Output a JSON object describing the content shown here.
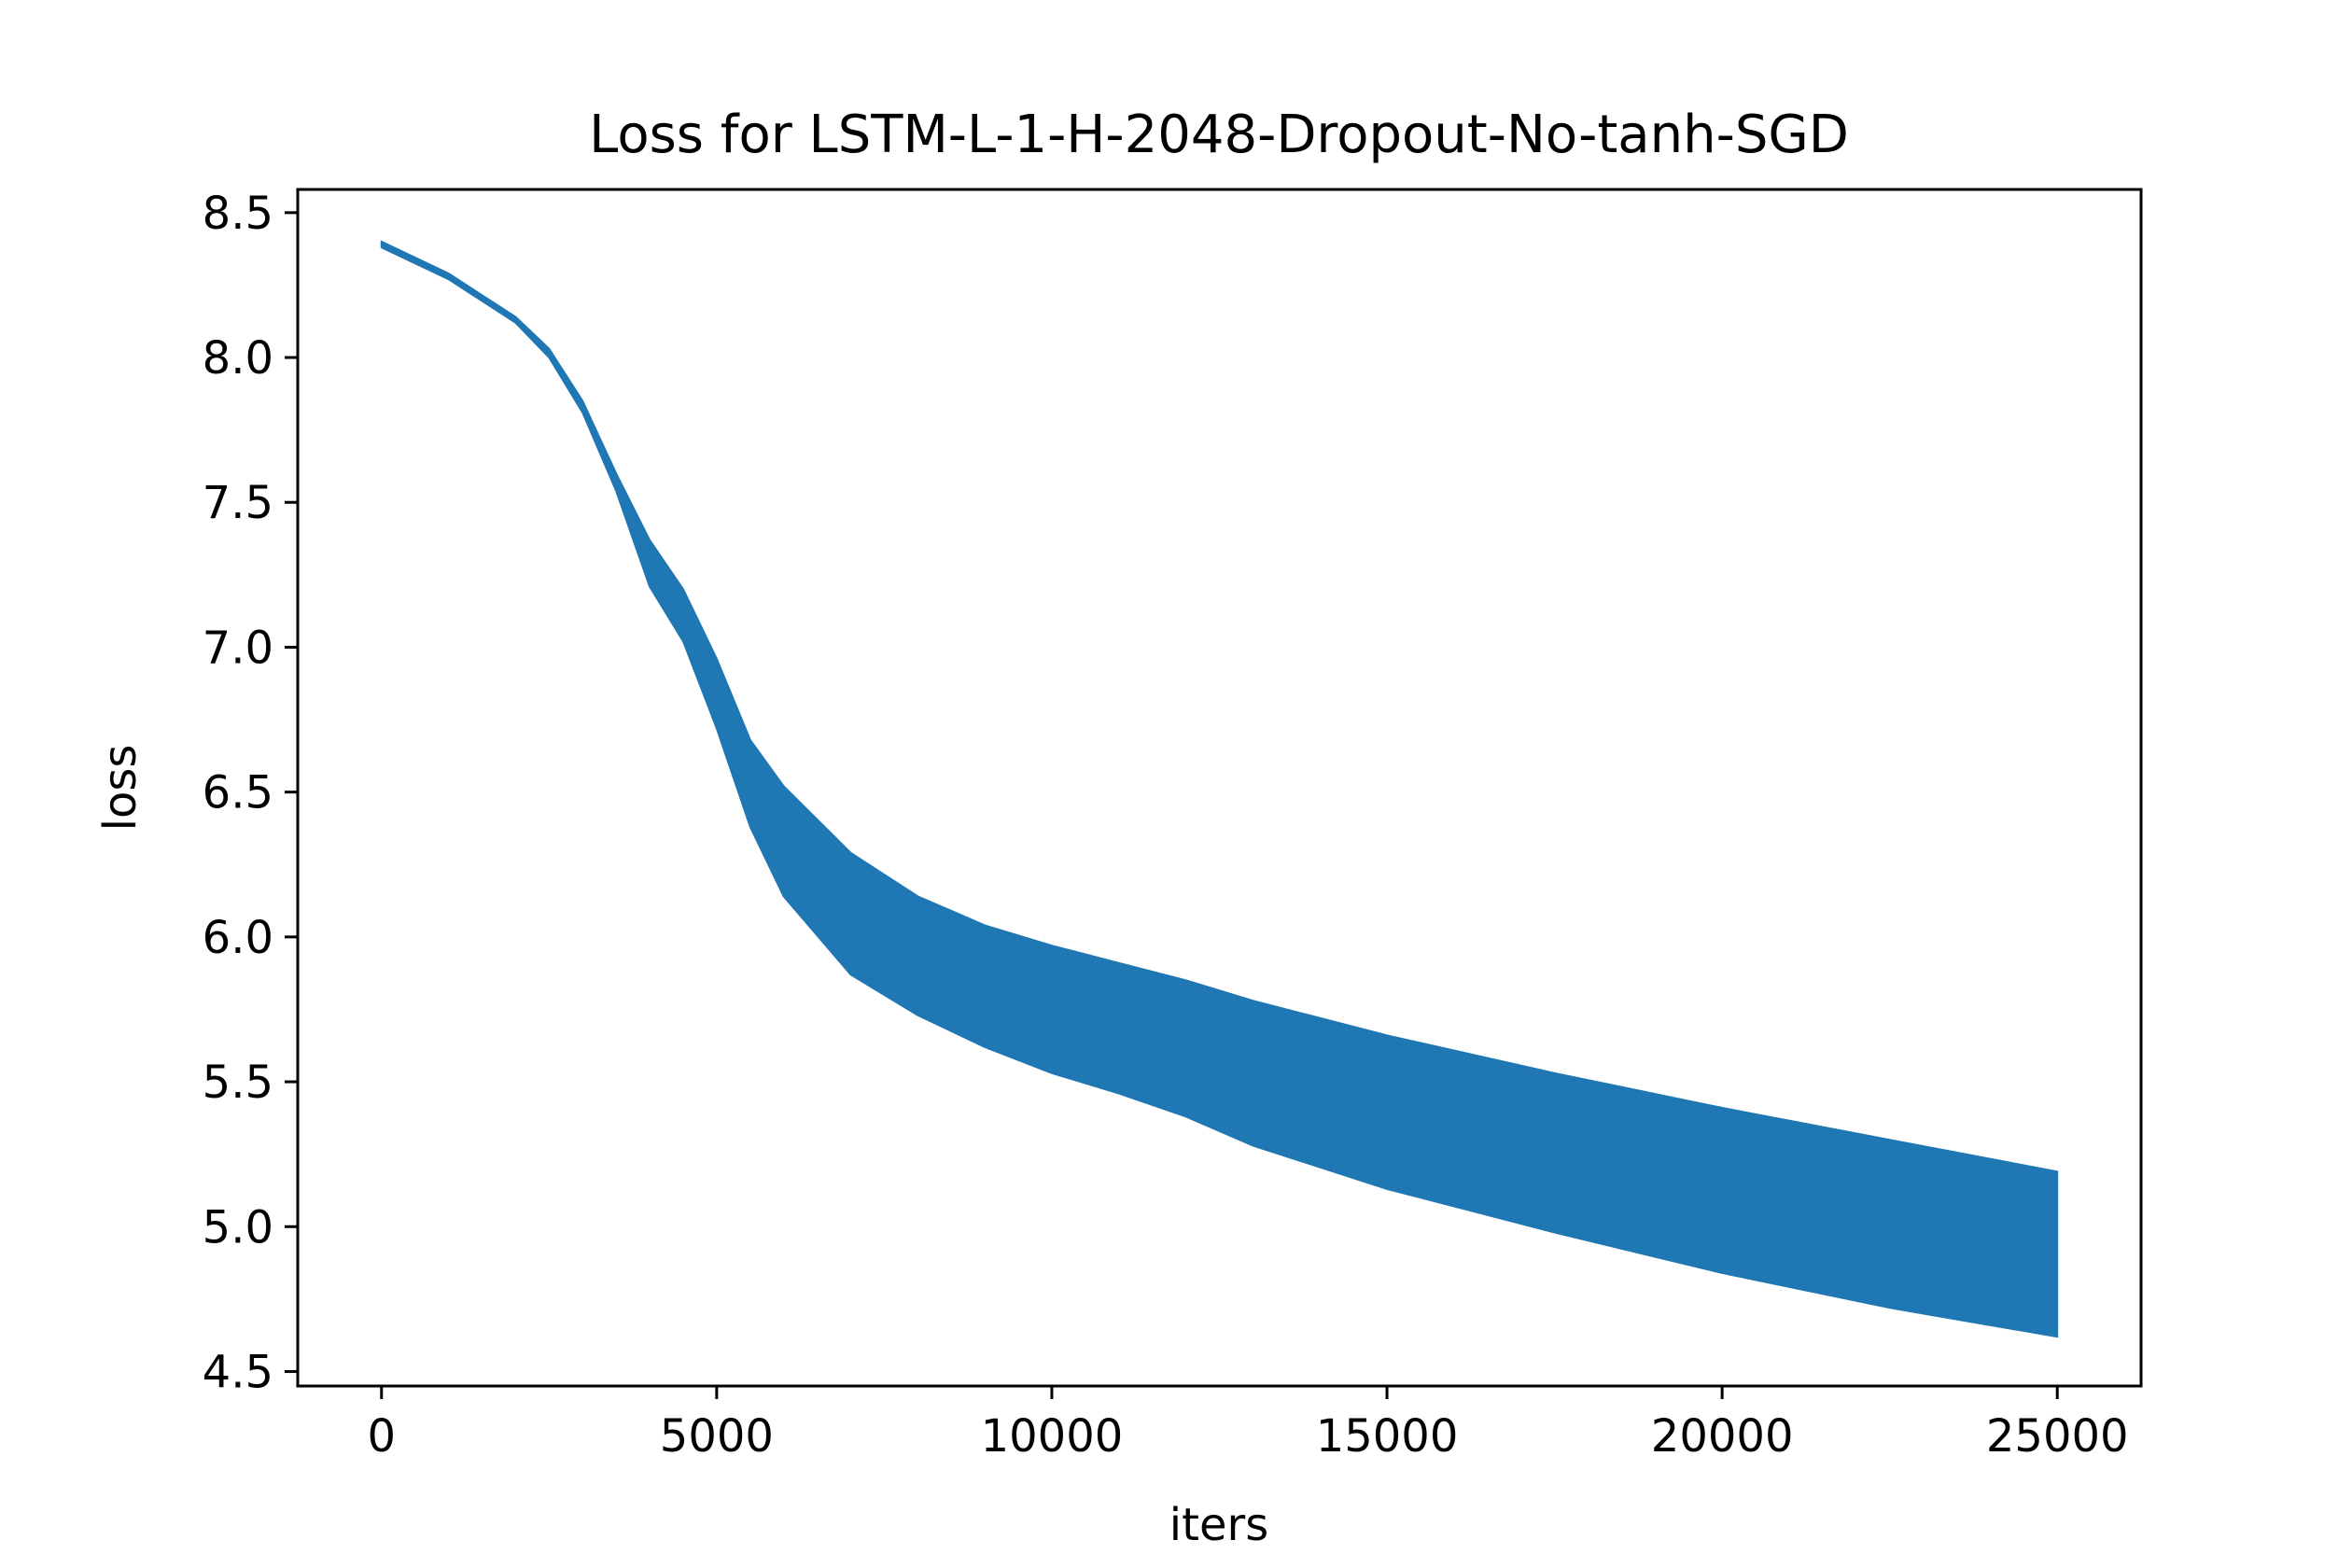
{
  "chart_data": {
    "type": "area",
    "title": "Loss for LSTM-L-1-H-2048-Dropout-No-tanh-SGD",
    "xlabel": "iters",
    "ylabel": "loss",
    "xlim": [
      -1250,
      26250
    ],
    "ylim": [
      4.45,
      8.58
    ],
    "xticks": [
      0,
      5000,
      10000,
      15000,
      20000,
      25000
    ],
    "xtick_labels": [
      "0",
      "5000",
      "10000",
      "15000",
      "20000",
      "25000"
    ],
    "yticks": [
      4.5,
      5.0,
      5.5,
      6.0,
      6.5,
      7.0,
      7.5,
      8.0,
      8.5
    ],
    "ytick_labels": [
      "4.5",
      "5.0",
      "5.5",
      "6.0",
      "6.5",
      "7.0",
      "7.5",
      "8.0",
      "8.5"
    ],
    "grid": false,
    "color": "#1f77b4",
    "series": [
      {
        "x": [
          0,
          1000,
          2000,
          2500,
          3000,
          3500,
          4000,
          4500,
          5000,
          5500,
          6000,
          7000,
          8000,
          9000,
          10000,
          11000,
          12000,
          13000,
          15000,
          17500,
          20000,
          22500,
          25000
        ],
        "upper": [
          8.4,
          8.29,
          8.14,
          8.03,
          7.85,
          7.6,
          7.37,
          7.2,
          6.96,
          6.68,
          6.52,
          6.29,
          6.14,
          6.04,
          5.97,
          5.91,
          5.85,
          5.78,
          5.66,
          5.53,
          5.41,
          5.3,
          5.19
        ],
        "lower": [
          8.38,
          8.27,
          8.12,
          8.0,
          7.81,
          7.54,
          7.21,
          7.02,
          6.72,
          6.38,
          6.14,
          5.87,
          5.73,
          5.62,
          5.53,
          5.46,
          5.38,
          5.28,
          5.13,
          4.98,
          4.84,
          4.72,
          4.62
        ]
      }
    ]
  }
}
